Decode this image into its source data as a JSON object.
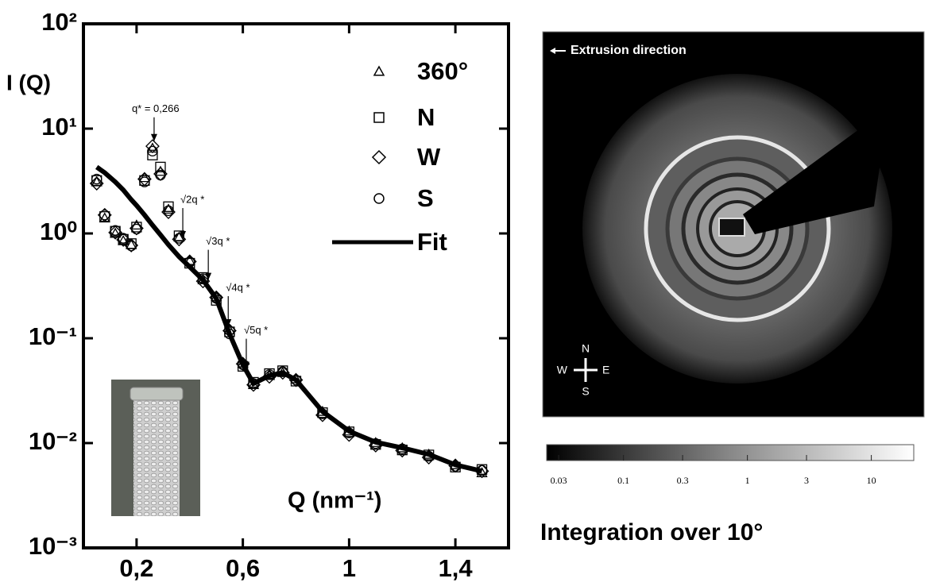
{
  "chart_data": {
    "type": "scatter",
    "ylog": true,
    "grid": false,
    "legend": "upper right",
    "ylabel": "I (Q)",
    "xlabel": "Q (nm⁻¹)",
    "xlim": [
      0,
      1.6
    ],
    "ylim": [
      0.001,
      100
    ],
    "xticks": [
      {
        "value": 0.2,
        "label": "0,2"
      },
      {
        "value": 0.6,
        "label": "0,6"
      },
      {
        "value": 1,
        "label": "1"
      },
      {
        "value": 1.4,
        "label": "1,4"
      }
    ],
    "yticks": [
      {
        "value": 0.001,
        "label": "10⁻³"
      },
      {
        "value": 0.01,
        "label": "10⁻²"
      },
      {
        "value": 0.1,
        "label": "10⁻¹"
      },
      {
        "value": 1,
        "label": "10⁰"
      },
      {
        "value": 10,
        "label": "10¹"
      },
      {
        "value": 100,
        "label": "10²"
      }
    ],
    "x": [
      0.05,
      0.08,
      0.12,
      0.15,
      0.18,
      0.2,
      0.23,
      0.26,
      0.29,
      0.32,
      0.36,
      0.4,
      0.45,
      0.5,
      0.55,
      0.6,
      0.64,
      0.7,
      0.75,
      0.8,
      0.9,
      1.0,
      1.1,
      1.2,
      1.3,
      1.4,
      1.5
    ],
    "series": [
      {
        "name": "360°",
        "marker": "triangle",
        "color": "#000000",
        "values": [
          3.1,
          1.4,
          1.0,
          0.85,
          0.78,
          1.2,
          3.4,
          6.5,
          3.9,
          1.7,
          0.92,
          0.55,
          0.36,
          0.25,
          0.12,
          0.058,
          0.036,
          0.044,
          0.047,
          0.041,
          0.02,
          0.013,
          0.0101,
          0.009,
          0.0078,
          0.0062,
          0.0052
        ]
      },
      {
        "name": "N",
        "marker": "square",
        "color": "#000000",
        "values": [
          3.2,
          1.45,
          1.05,
          0.88,
          0.8,
          1.15,
          3.2,
          5.6,
          4.3,
          1.8,
          0.95,
          0.52,
          0.38,
          0.23,
          0.115,
          0.054,
          0.038,
          0.046,
          0.049,
          0.039,
          0.0195,
          0.0128,
          0.0097,
          0.0086,
          0.0077,
          0.0059,
          0.0056
        ]
      },
      {
        "name": "W",
        "marker": "diamond",
        "color": "#000000",
        "values": [
          3.0,
          1.5,
          1.02,
          0.87,
          0.77,
          1.12,
          3.3,
          6.8,
          3.7,
          1.6,
          0.88,
          0.54,
          0.35,
          0.245,
          0.118,
          0.057,
          0.036,
          0.043,
          0.047,
          0.04,
          0.0185,
          0.012,
          0.0095,
          0.0085,
          0.0073,
          0.0061,
          0.0054
        ]
      },
      {
        "name": "S",
        "marker": "circle",
        "color": "#000000",
        "values": [
          3.3,
          1.5,
          1.07,
          0.9,
          0.76,
          1.1,
          3.1,
          6.1,
          3.6,
          1.65,
          0.9,
          0.53,
          0.37,
          0.24,
          0.11,
          0.056,
          0.037,
          0.045,
          0.048,
          0.04,
          0.019,
          0.0125,
          0.0099,
          0.0088,
          0.0075,
          0.006,
          0.0055
        ]
      },
      {
        "name": "Fit",
        "marker": "line",
        "color": "#000000",
        "values": [
          4.3,
          3.8,
          3.1,
          2.6,
          2.1,
          1.85,
          1.5,
          1.2,
          0.97,
          0.78,
          0.6,
          0.48,
          0.36,
          0.24,
          0.11,
          0.056,
          0.037,
          0.044,
          0.047,
          0.04,
          0.02,
          0.013,
          0.0102,
          0.009,
          0.0078,
          0.0062,
          0.0054
        ]
      }
    ],
    "annotations": [
      {
        "text": "q* = 0,266",
        "x": 0.266,
        "y": 7.6
      },
      {
        "text": "√2q *",
        "x": 0.374,
        "y": 0.9
      },
      {
        "text": "√3q *",
        "x": 0.47,
        "y": 0.36
      },
      {
        "text": "√4q *",
        "x": 0.545,
        "y": 0.13
      },
      {
        "text": "√5q *",
        "x": 0.613,
        "y": 0.051
      }
    ]
  },
  "image": {
    "annotation": "Extrusion direction",
    "compass": {
      "n": "N",
      "w": "W",
      "e": "E",
      "s": "S"
    },
    "colorbar": {
      "log": true,
      "lim": [
        0.024,
        22
      ],
      "ticks": [
        0.03,
        0.1,
        0.3,
        1,
        3,
        10
      ]
    },
    "caption": "Integration over 10°"
  }
}
